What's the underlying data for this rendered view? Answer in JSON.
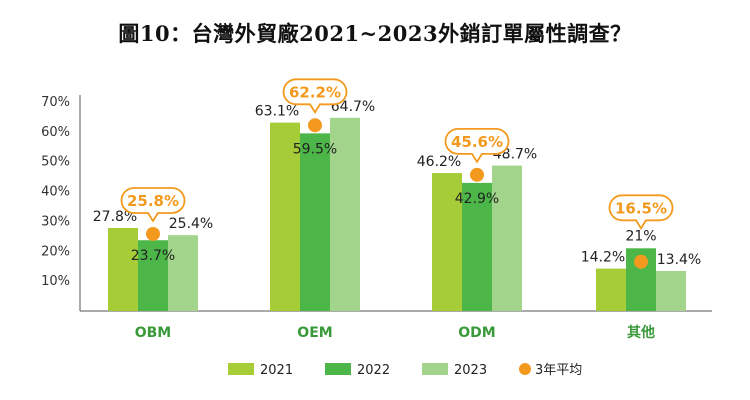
{
  "chart_data": {
    "type": "bar",
    "title": "圖10：台灣外貿廠2021~2023外銷訂單屬性調查？",
    "categories": [
      "OBM",
      "OEM",
      "ODM",
      "其他"
    ],
    "series": [
      {
        "name": "2021",
        "values": [
          27.8,
          63.1,
          46.2,
          14.2
        ],
        "labels": [
          "27.8%",
          "63.1%",
          "46.2%",
          "14.2%"
        ],
        "color": "#a6cc37"
      },
      {
        "name": "2022",
        "values": [
          23.7,
          59.5,
          42.9,
          21.0
        ],
        "labels": [
          "23.7%",
          "59.5%",
          "42.9%",
          "21%"
        ],
        "color": "#4cb748"
      },
      {
        "name": "2023",
        "values": [
          25.4,
          64.7,
          48.7,
          13.4
        ],
        "labels": [
          "25.4%",
          "64.7%",
          "48.7%",
          "13.4%"
        ],
        "color": "#a3d48c"
      }
    ],
    "average": {
      "name": "3年平均",
      "values": [
        25.8,
        62.2,
        45.6,
        16.5
      ],
      "labels": [
        "25.8%",
        "62.2%",
        "45.6%",
        "16.5%"
      ],
      "color": "#f39a1e"
    },
    "ylim": [
      0,
      70
    ],
    "yticks": [
      "10%",
      "20%",
      "30%",
      "40%",
      "50%",
      "60%",
      "70%"
    ],
    "xlabel": "",
    "ylabel": "",
    "legend_position": "bottom-center"
  }
}
